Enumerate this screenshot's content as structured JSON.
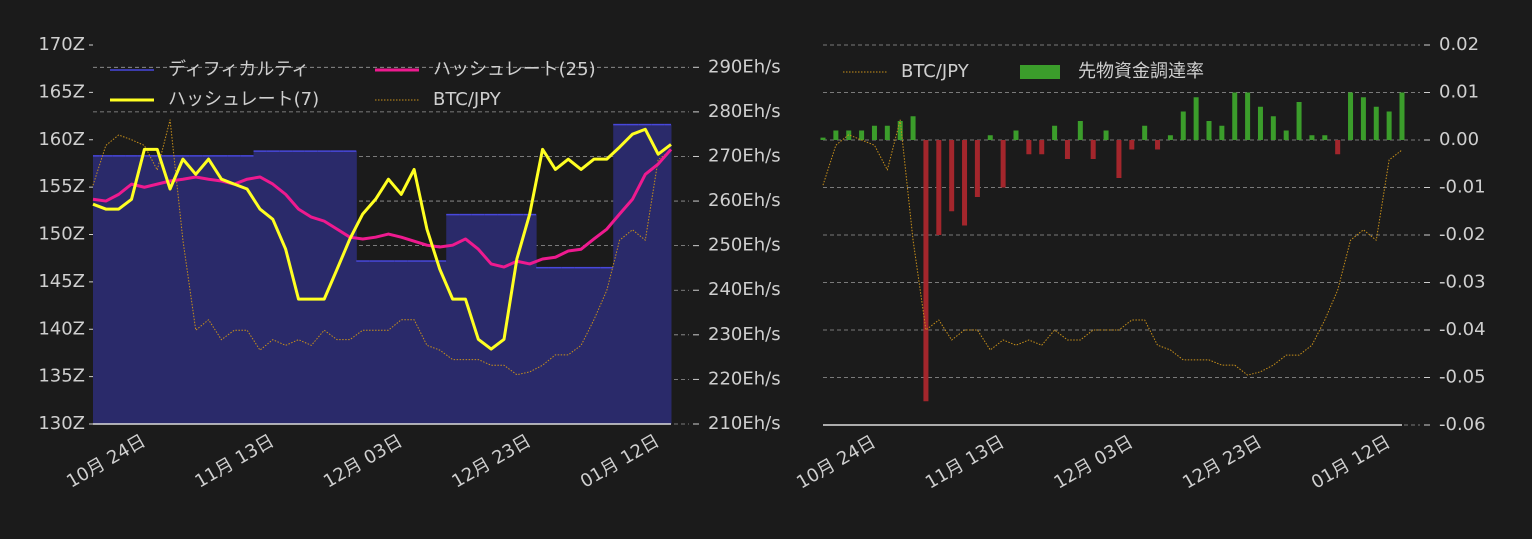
{
  "chart_data": [
    {
      "type": "line",
      "categories": [
        null,
        null,
        null,
        null,
        "10月 24日",
        null,
        null,
        null,
        null,
        null,
        null,
        null,
        null,
        null,
        "11月 13日",
        null,
        null,
        null,
        null,
        null,
        null,
        null,
        null,
        null,
        "12月 03日",
        null,
        null,
        null,
        null,
        null,
        null,
        null,
        null,
        null,
        "12月 23日",
        null,
        null,
        null,
        null,
        null,
        null,
        null,
        null,
        null,
        "01月 12日",
        null
      ],
      "ylim": [
        130,
        170
      ],
      "yticks": [
        {
          "value": 130,
          "label": "130Z"
        },
        {
          "value": 135,
          "label": "135Z"
        },
        {
          "value": 140,
          "label": "140Z"
        },
        {
          "value": 145,
          "label": "145Z"
        },
        {
          "value": 150,
          "label": "150Z"
        },
        {
          "value": 155,
          "label": "155Z"
        },
        {
          "value": 160,
          "label": "160Z"
        },
        {
          "value": 165,
          "label": "165Z"
        },
        {
          "value": 170,
          "label": "170Z"
        }
      ],
      "y2lim": [
        210,
        295
      ],
      "y2ticks": [
        {
          "value": 210,
          "label": "210Eh/s"
        },
        {
          "value": 220,
          "label": "220Eh/s"
        },
        {
          "value": 230,
          "label": "230Eh/s"
        },
        {
          "value": 240,
          "label": "240Eh/s"
        },
        {
          "value": 250,
          "label": "250Eh/s"
        },
        {
          "value": 260,
          "label": "260Eh/s"
        },
        {
          "value": 270,
          "label": "270Eh/s"
        },
        {
          "value": 280,
          "label": "280Eh/s"
        },
        {
          "value": 290,
          "label": "290Eh/s"
        }
      ],
      "grid": true,
      "series": [
        {
          "name": "ディフィカルティ",
          "color": "#4848dc",
          "fill": "#2a2a6a",
          "style": "step-area",
          "values": [
            158.3,
            158.3,
            158.3,
            158.3,
            158.3,
            158.3,
            158.3,
            158.3,
            158.3,
            158.3,
            158.3,
            158.3,
            158.3,
            158.8,
            158.8,
            158.8,
            158.8,
            158.8,
            158.8,
            158.8,
            158.8,
            147.2,
            147.2,
            147.2,
            147.2,
            147.2,
            147.2,
            147.2,
            152.1,
            152.1,
            152.1,
            152.1,
            152.1,
            152.1,
            152.1,
            146.5,
            146.5,
            146.5,
            146.5,
            146.5,
            146.5,
            161.6,
            161.6,
            161.6,
            161.6,
            161.6
          ]
        },
        {
          "name": "ハッシュレート(7)",
          "color": "#ffff22",
          "axis": "y2",
          "style": "line",
          "values": [
            259.3,
            258.2,
            258.2,
            260.4,
            271.6,
            271.6,
            262.7,
            269.4,
            266.0,
            269.4,
            264.9,
            263.8,
            262.7,
            258.2,
            255.9,
            249.2,
            238.0,
            238.0,
            238.0,
            244.7,
            251.5,
            257.1,
            260.4,
            264.9,
            261.5,
            267.1,
            253.7,
            244.7,
            238.0,
            238.0,
            229.0,
            226.8,
            229.0,
            247.0,
            257.1,
            271.6,
            267.1,
            269.4,
            267.1,
            269.4,
            269.4,
            272.1,
            275.0,
            276.1,
            270.5,
            272.7
          ]
        },
        {
          "name": "ハッシュレート(25)",
          "color": "#ee1a8f",
          "axis": "y2",
          "style": "line",
          "values": [
            260.4,
            260.0,
            261.5,
            263.8,
            263.1,
            263.8,
            264.5,
            264.9,
            265.4,
            264.9,
            264.5,
            263.8,
            264.9,
            265.4,
            263.8,
            261.5,
            258.2,
            256.4,
            255.5,
            253.7,
            251.9,
            251.5,
            251.9,
            252.6,
            251.9,
            251.0,
            250.1,
            249.7,
            250.1,
            251.5,
            249.2,
            245.9,
            245.2,
            246.5,
            245.9,
            247.0,
            247.4,
            248.8,
            249.2,
            251.5,
            253.7,
            257.1,
            260.4,
            266.0,
            268.3,
            271.6
          ]
        },
        {
          "name": "BTC/JPY",
          "color": "#c8901a",
          "style": "dotted",
          "values": [
            155.2,
            159.4,
            160.5,
            160.0,
            159.4,
            156.8,
            162.1,
            149.4,
            139.9,
            141.0,
            138.9,
            139.9,
            139.9,
            137.8,
            138.9,
            138.3,
            138.9,
            138.3,
            139.9,
            138.9,
            138.9,
            139.9,
            139.9,
            139.9,
            141.0,
            141.0,
            138.3,
            137.8,
            136.8,
            136.8,
            136.8,
            136.2,
            136.2,
            135.2,
            135.5,
            136.2,
            137.3,
            137.3,
            138.3,
            141.0,
            144.1,
            149.4,
            150.5,
            149.4,
            157.9,
            158.9
          ]
        }
      ]
    },
    {
      "type": "bar",
      "categories": [
        null,
        null,
        null,
        null,
        "10月 24日",
        null,
        null,
        null,
        null,
        null,
        null,
        null,
        null,
        null,
        "11月 13日",
        null,
        null,
        null,
        null,
        null,
        null,
        null,
        null,
        null,
        "12月 03日",
        null,
        null,
        null,
        null,
        null,
        null,
        null,
        null,
        null,
        "12月 23日",
        null,
        null,
        null,
        null,
        null,
        null,
        null,
        null,
        null,
        "01月 12日",
        null
      ],
      "ylim": [
        -0.06,
        0.02
      ],
      "yticks": [
        -0.06,
        -0.05,
        -0.04,
        -0.03,
        -0.02,
        -0.01,
        {
          "value": 0,
          "label": "0.00"
        },
        0.01,
        0.02
      ],
      "grid": true,
      "series": [
        {
          "name": "BTC/JPY",
          "color": "#c8901a",
          "style": "dotted",
          "values": [
            -0.0095,
            -0.0011,
            0.0011,
            0,
            -0.0011,
            -0.0063,
            0.0042,
            -0.0211,
            -0.04,
            -0.0379,
            -0.0421,
            -0.04,
            -0.04,
            -0.0442,
            -0.0421,
            -0.0432,
            -0.0421,
            -0.0432,
            -0.04,
            -0.0421,
            -0.0421,
            -0.04,
            -0.04,
            -0.04,
            -0.0379,
            -0.0379,
            -0.0432,
            -0.0442,
            -0.0463,
            -0.0463,
            -0.0463,
            -0.0474,
            -0.0474,
            -0.0495,
            -0.0488,
            -0.0474,
            -0.0453,
            -0.0453,
            -0.0432,
            -0.0379,
            -0.0316,
            -0.0211,
            -0.0189,
            -0.0211,
            -0.0042,
            -0.0021
          ]
        },
        {
          "name": "先物資金調達率",
          "color": "#3b9d2b",
          "negative_color": "#a3262c",
          "style": "bar",
          "values": [
            0.0005,
            0.002,
            0.002,
            0.002,
            0.003,
            0.003,
            0.004,
            0.005,
            -0.055,
            -0.02,
            -0.015,
            -0.018,
            -0.012,
            0.001,
            -0.01,
            0.002,
            -0.003,
            -0.003,
            0.003,
            -0.004,
            0.004,
            -0.004,
            0.002,
            -0.008,
            -0.002,
            0.003,
            -0.002,
            0.001,
            0.006,
            0.009,
            0.004,
            0.003,
            0.01,
            0.01,
            0.007,
            0.005,
            0.002,
            0.008,
            0.001,
            0.001,
            -0.003,
            0.01,
            0.009,
            0.007,
            0.006,
            0.01
          ]
        }
      ]
    }
  ]
}
